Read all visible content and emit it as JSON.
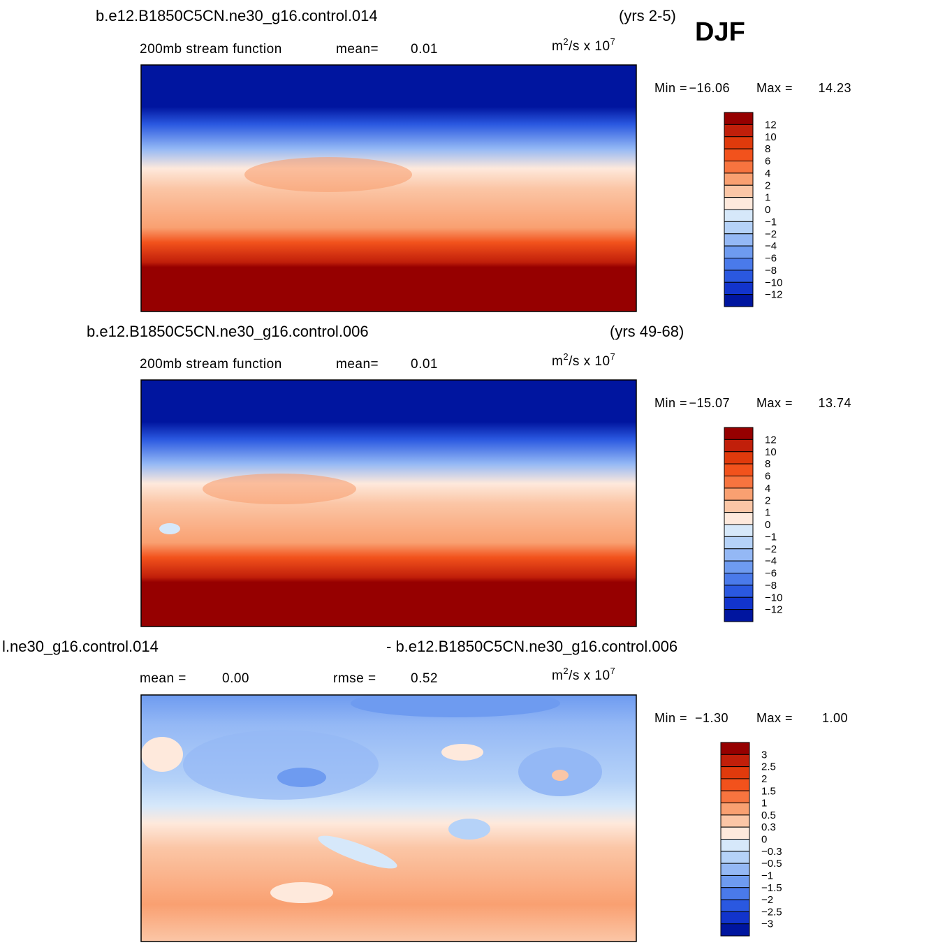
{
  "season": "DJF",
  "panels": [
    {
      "title_left": "b.e12.B1850C5CN.ne30_g16.control.014",
      "title_right": "(yrs 2-5)",
      "subtitle": [
        "200mb stream function",
        "mean=",
        "0.01"
      ],
      "units": [
        "m",
        "2",
        "/s x 10",
        "7"
      ],
      "min_label": "Min =",
      "min": "−16.06",
      "max_label": "Max =",
      "max": "14.23",
      "colorbar": {
        "labels": [
          "12",
          "10",
          "8",
          "6",
          "4",
          "2",
          "1",
          "0",
          "−1",
          "−2",
          "−4",
          "−6",
          "−8",
          "−10",
          "−12"
        ],
        "colors": [
          "#960000",
          "#c11f0a",
          "#e03a0c",
          "#f2521c",
          "#f7743f",
          "#f9a071",
          "#fbc6a6",
          "#fee9dc",
          "#d6e8fa",
          "#b5d2f8",
          "#94b8f5",
          "#6e9bf0",
          "#4a7aea",
          "#2a58e0",
          "#1234cc",
          "#00159f"
        ]
      }
    },
    {
      "title_left": "b.e12.B1850C5CN.ne30_g16.control.006",
      "title_right": "(yrs 49-68)",
      "subtitle": [
        "200mb stream function",
        "mean=",
        "0.01"
      ],
      "units": [
        "m",
        "2",
        "/s x 10",
        "7"
      ],
      "min_label": "Min =",
      "min": "−15.07",
      "max_label": "Max =",
      "max": "13.74",
      "colorbar": {
        "labels": [
          "12",
          "10",
          "8",
          "6",
          "4",
          "2",
          "1",
          "0",
          "−1",
          "−2",
          "−4",
          "−6",
          "−8",
          "−10",
          "−12"
        ],
        "colors": [
          "#960000",
          "#c11f0a",
          "#e03a0c",
          "#f2521c",
          "#f7743f",
          "#f9a071",
          "#fbc6a6",
          "#fee9dc",
          "#d6e8fa",
          "#b5d2f8",
          "#94b8f5",
          "#6e9bf0",
          "#4a7aea",
          "#2a58e0",
          "#1234cc",
          "#00159f"
        ]
      }
    },
    {
      "title_left": "l.ne30_g16.control.014",
      "title_right": "- b.e12.B1850C5CN.ne30_g16.control.006",
      "subtitle": [
        "mean =",
        "0.00",
        "rmse =",
        "0.52"
      ],
      "units": [
        "m",
        "2",
        "/s x 10",
        "7"
      ],
      "min_label": "Min =",
      "min": "−1.30",
      "max_label": "Max =",
      "max": "1.00",
      "colorbar": {
        "labels": [
          "3",
          "2.5",
          "2",
          "1.5",
          "1",
          "0.5",
          "0.3",
          "0",
          "−0.3",
          "−0.5",
          "−1",
          "−1.5",
          "−2",
          "−2.5",
          "−3"
        ],
        "colors": [
          "#960000",
          "#c11f0a",
          "#e03a0c",
          "#f2521c",
          "#f7743f",
          "#f9a071",
          "#fbc6a6",
          "#fee9dc",
          "#d6e8fa",
          "#b5d2f8",
          "#94b8f5",
          "#6e9bf0",
          "#4a7aea",
          "#2a58e0",
          "#1234cc",
          "#00159f"
        ]
      }
    }
  ]
}
